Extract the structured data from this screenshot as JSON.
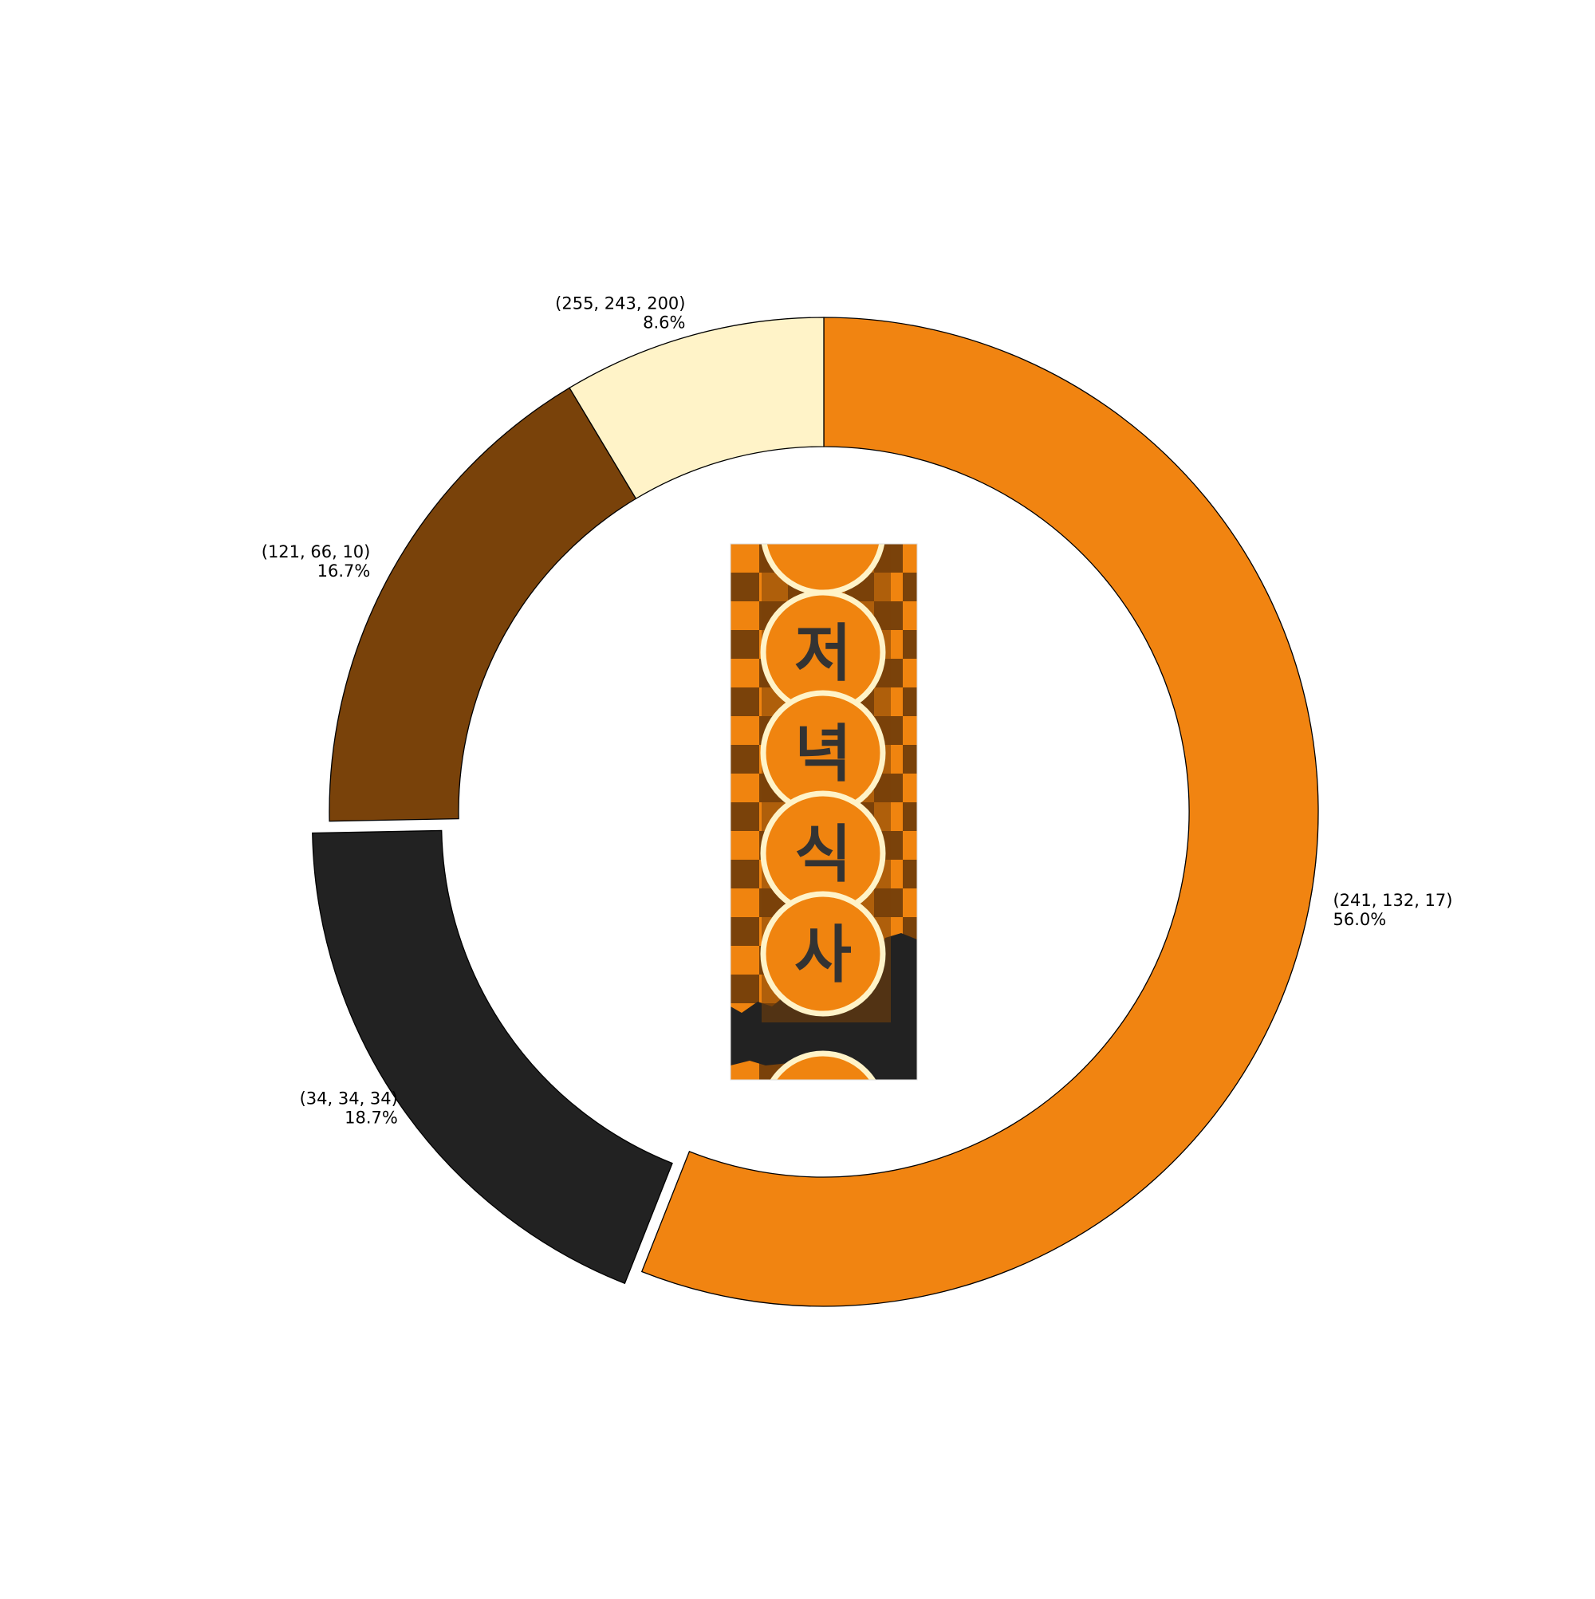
{
  "chart_data": {
    "type": "pie",
    "variant": "donut",
    "slices": [
      {
        "label": "(241, 132, 17)",
        "value": 56.0,
        "pct_label": "56.0%",
        "color": "#f18411"
      },
      {
        "label": "(34, 34, 34)",
        "value": 18.7,
        "pct_label": "18.7%",
        "color": "#222222",
        "exploded": true
      },
      {
        "label": "(121, 66, 10)",
        "value": 16.7,
        "pct_label": "16.7%",
        "color": "#79420a"
      },
      {
        "label": "(255, 243, 200)",
        "value": 8.6,
        "pct_label": "8.6%",
        "color": "#fff3c8"
      }
    ],
    "start": "top",
    "direction": "clockwise",
    "legend": "none"
  },
  "center_image": {
    "description_icon": "checkerboard-sign-icon",
    "characters": [
      "저",
      "녁",
      "식",
      "사"
    ],
    "colors": {
      "orange": "#f0840f",
      "dark_orange": "#7a420a",
      "black": "#222222",
      "cream": "#fff3c8"
    }
  }
}
